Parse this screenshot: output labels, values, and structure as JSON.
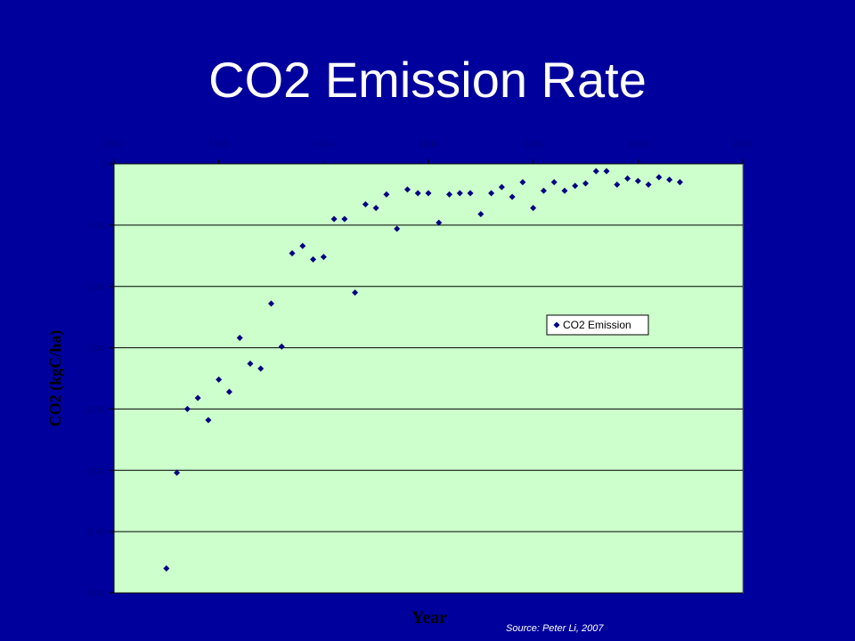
{
  "title": "CO2 Emission Rate",
  "source": "Source: Peter Li, 2007",
  "colors": {
    "background": "#00009c",
    "plot_area": "#ccffcc",
    "marker": "#000080",
    "tick_labels": "#000080",
    "axis_titles": "#000000",
    "gridline": "#000000"
  },
  "chart_data": {
    "type": "scatter",
    "xlabel": "Year",
    "ylabel": "CO2 (kgC/ha)",
    "xlim": [
      1950,
      2010
    ],
    "ylim": [
      -3500,
      0
    ],
    "xticks": [
      1950,
      1960,
      1970,
      1980,
      1990,
      2000,
      2010
    ],
    "yticks": [
      0,
      -500,
      -1000,
      -1500,
      -2000,
      -2500,
      -3000,
      -3500
    ],
    "x_axis_position": "top",
    "grid": "horizontal",
    "legend_position": "right-middle",
    "series": [
      {
        "name": "CO2 Emission",
        "marker": "diamond",
        "x": [
          1955,
          1956,
          1957,
          1958,
          1959,
          1960,
          1961,
          1962,
          1963,
          1964,
          1965,
          1966,
          1967,
          1968,
          1969,
          1970,
          1971,
          1972,
          1973,
          1974,
          1975,
          1976,
          1977,
          1978,
          1979,
          1980,
          1981,
          1982,
          1983,
          1984,
          1985,
          1986,
          1987,
          1988,
          1989,
          1990,
          1991,
          1992,
          1993,
          1994,
          1995,
          1996,
          1997,
          1998,
          1999,
          2000,
          2001,
          2002,
          2003,
          2004
        ],
        "y": [
          -3300,
          -2520,
          -2000,
          -1910,
          -2090,
          -1760,
          -1860,
          -1420,
          -1630,
          -1670,
          -1140,
          -1490,
          -730,
          -670,
          -780,
          -760,
          -450,
          -450,
          -1050,
          -330,
          -360,
          -250,
          -530,
          -210,
          -240,
          -240,
          -480,
          -250,
          -240,
          -240,
          -410,
          -240,
          -190,
          -270,
          -150,
          -360,
          -220,
          -150,
          -220,
          -180,
          -160,
          -60,
          -60,
          -170,
          -120,
          -140,
          -170,
          -110,
          -130,
          -150
        ]
      }
    ]
  }
}
